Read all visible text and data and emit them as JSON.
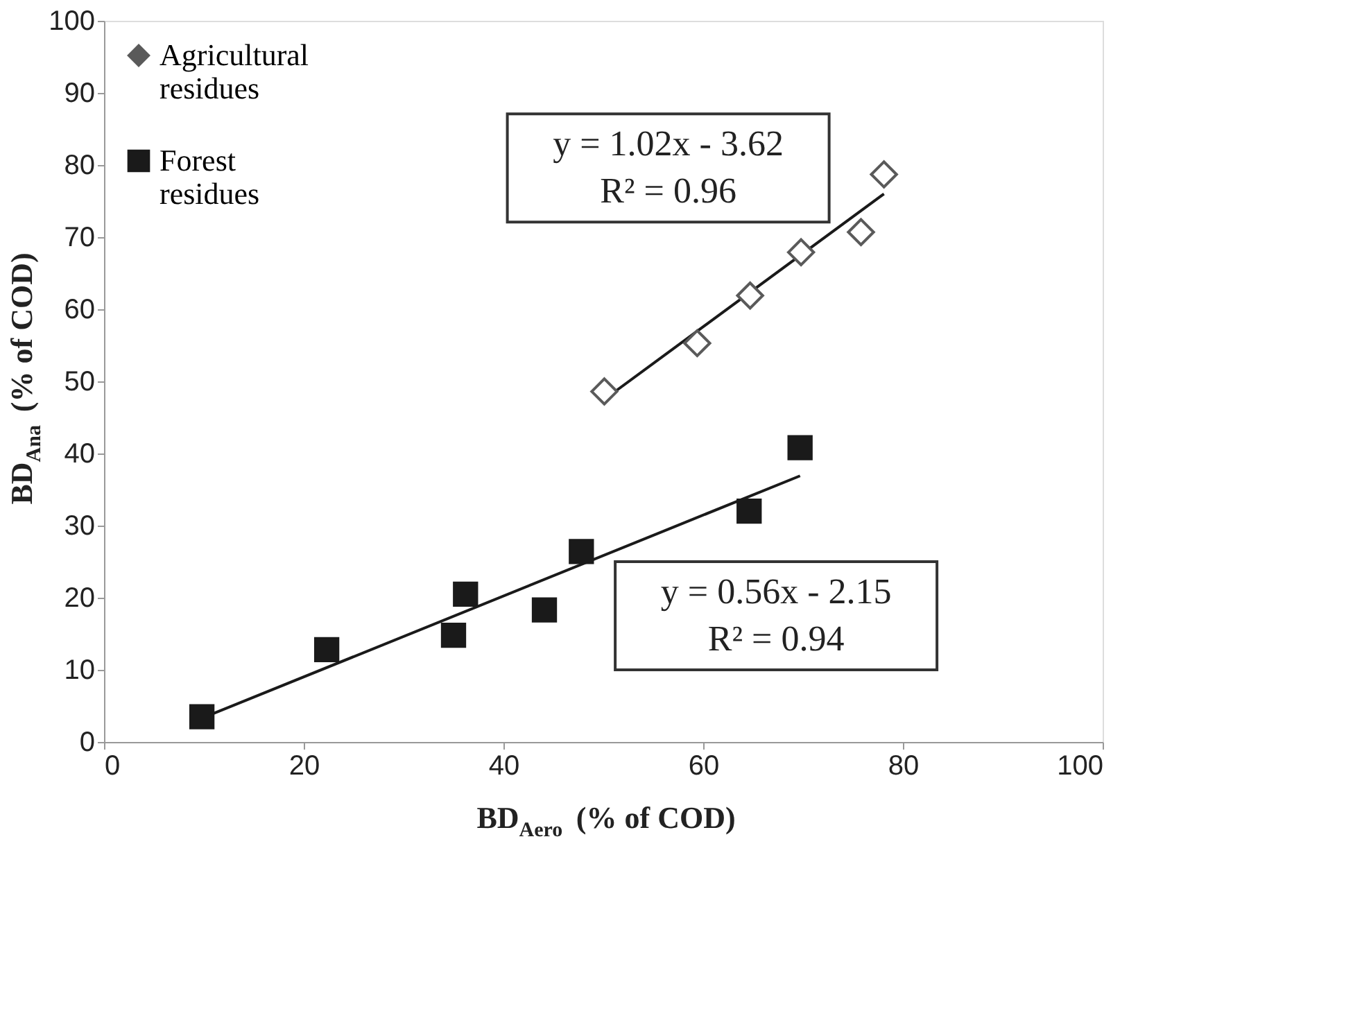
{
  "chart_data": {
    "type": "scatter",
    "xlabel": "BD$_{Aero}$ (% of COD)",
    "ylabel": "BD$_{Ana}$ (% of COD)",
    "xlim": [
      0,
      100
    ],
    "ylim": [
      0,
      100
    ],
    "xticks": [
      0,
      20,
      40,
      60,
      80,
      100
    ],
    "yticks": [
      0,
      10,
      20,
      30,
      40,
      50,
      60,
      70,
      80,
      90,
      100
    ],
    "grid": false,
    "legend": "top left",
    "series": [
      {
        "name": "Agricultural residues",
        "color": "#5a5a5a",
        "marker": "diamond",
        "x": [
          50.1,
          59.4,
          64.7,
          69.8,
          75.8,
          78.1
        ],
        "values": [
          48.6,
          55.3,
          61.9,
          67.9,
          70.7,
          78.7
        ]
      },
      {
        "name": "Forest residues",
        "color": "#1a1a1a",
        "marker": "square",
        "x": [
          9.8,
          22.3,
          35.0,
          36.2,
          44.1,
          47.8,
          64.6,
          69.7
        ],
        "values": [
          3.5,
          12.8,
          14.8,
          20.5,
          18.3,
          26.4,
          32.0,
          40.8
        ]
      },
      {
        "type": "line",
        "color": "#1a1a1a",
        "marker": "none",
        "x": [
          50.1,
          78.1
        ],
        "values": [
          47.5,
          76.0
        ]
      },
      {
        "type": "line",
        "color": "#1a1a1a",
        "marker": "none",
        "x": [
          9.8,
          69.7
        ],
        "values": [
          3.3,
          36.9
        ]
      }
    ],
    "annotations": [
      "y = 1.02x - 3.62\nR² = 0.96",
      "y = 0.56x - 2.15\nR² = 0.94"
    ]
  }
}
